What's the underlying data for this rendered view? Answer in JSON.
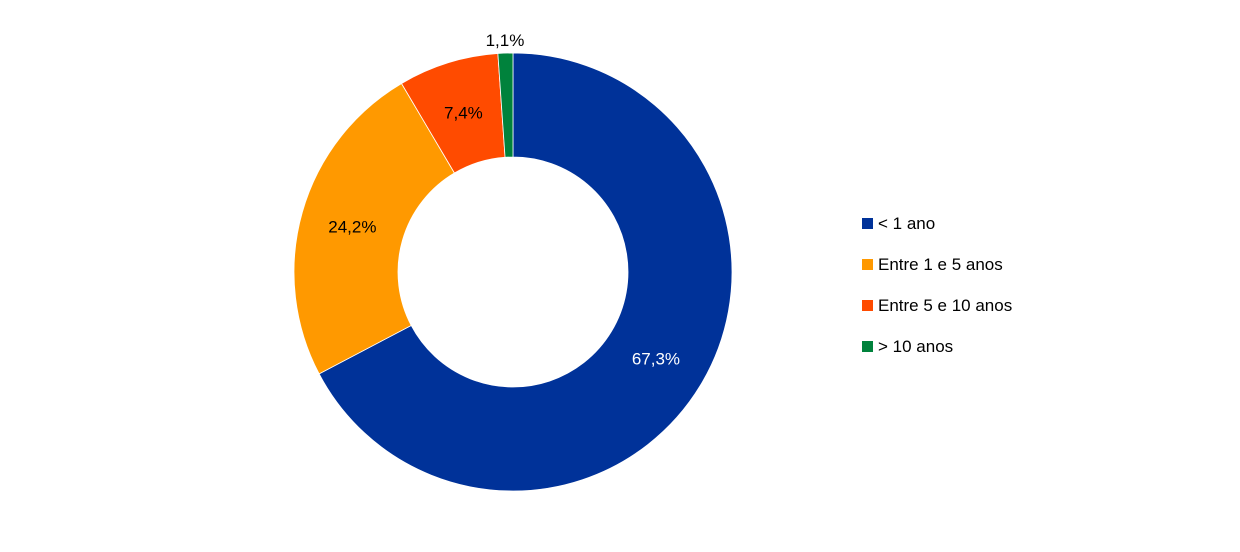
{
  "chart_data": {
    "type": "pie",
    "donut": true,
    "title": "",
    "start": "top",
    "direction": "clockwise",
    "categories": [
      "< 1 ano",
      "Entre 1 e 5 anos",
      "Entre 5 e 10 anos",
      "> 10 anos"
    ],
    "values": [
      67.3,
      24.2,
      7.4,
      1.1
    ],
    "labels": [
      "67,3%",
      "24,2%",
      "7,4%",
      "1,1%"
    ],
    "label_colors": [
      "#ffffff",
      "#000000",
      "#000000",
      "#000000"
    ],
    "label_position": [
      "inside",
      "inside",
      "inside",
      "outside"
    ],
    "colors": [
      "#003299",
      "#FF9900",
      "#FF4B00",
      "#00823C"
    ],
    "legend_position": "right"
  }
}
